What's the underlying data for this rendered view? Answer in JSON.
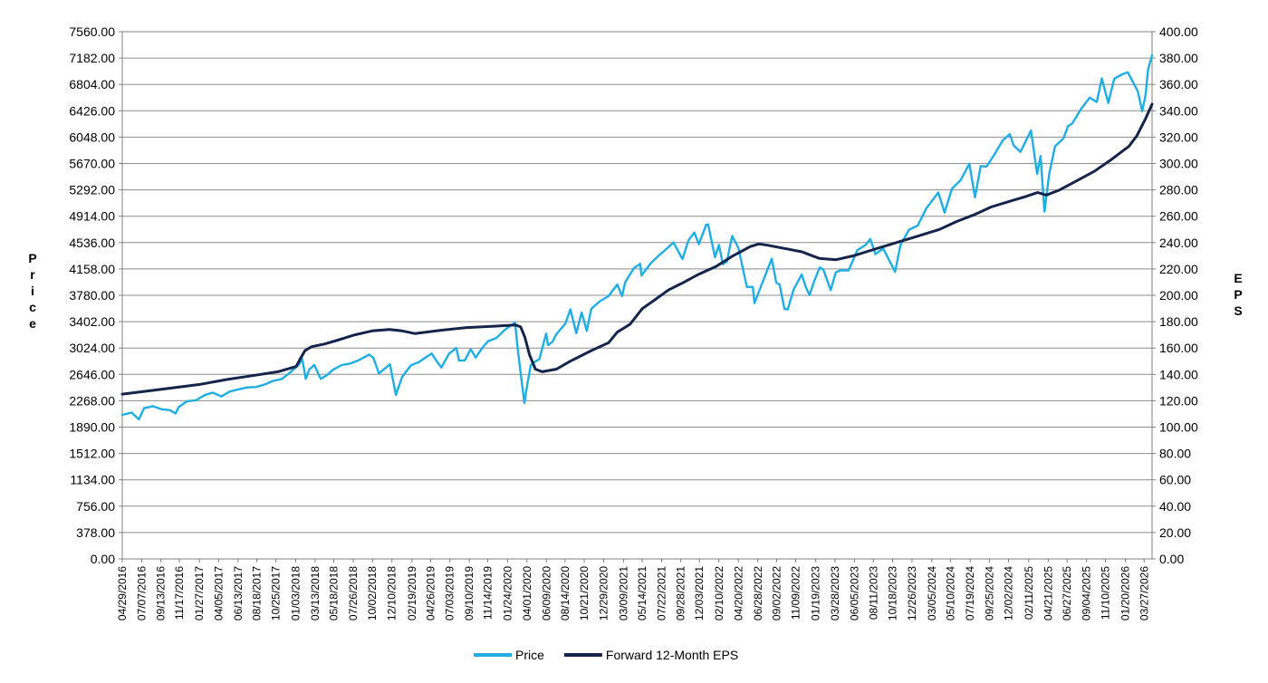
{
  "chart_data": {
    "type": "line",
    "title": "",
    "xlabel": "",
    "y_left_label": "Price",
    "y_right_label": "EPS",
    "y_left_ticks": [
      "0.00",
      "378.00",
      "756.00",
      "1134.00",
      "1512.00",
      "1890.00",
      "2268.00",
      "2646.00",
      "3024.00",
      "3402.00",
      "3780.00",
      "4158.00",
      "4536.00",
      "4914.00",
      "5292.00",
      "5670.00",
      "6048.00",
      "6426.00",
      "6804.00",
      "7182.00",
      "7560.00"
    ],
    "y_right_ticks": [
      "0.00",
      "20.00",
      "40.00",
      "60.00",
      "80.00",
      "100.00",
      "120.00",
      "140.00",
      "160.00",
      "180.00",
      "200.00",
      "220.00",
      "240.00",
      "260.00",
      "280.00",
      "300.00",
      "320.00",
      "340.00",
      "360.00",
      "380.00",
      "400.00"
    ],
    "y_left_lim": [
      0,
      7560
    ],
    "y_right_lim": [
      0,
      400
    ],
    "x_lim": [
      "04/29/2016",
      "04/24/2026"
    ],
    "x_ticks": [
      "04/29/2016",
      "07/07/2016",
      "09/13/2016",
      "11/17/2016",
      "01/27/2017",
      "04/05/2017",
      "06/13/2017",
      "08/18/2017",
      "10/25/2017",
      "01/03/2018",
      "03/13/2018",
      "05/18/2018",
      "07/26/2018",
      "10/02/2018",
      "12/10/2018",
      "02/19/2019",
      "04/26/2019",
      "07/03/2019",
      "09/10/2019",
      "11/14/2019",
      "01/24/2020",
      "04/01/2020",
      "06/09/2020",
      "08/14/2020",
      "10/21/2020",
      "12/29/2020",
      "03/09/2021",
      "05/14/2021",
      "07/22/2021",
      "09/28/2021",
      "12/03/2021",
      "02/10/2022",
      "04/20/2022",
      "06/28/2022",
      "09/02/2022",
      "11/09/2022",
      "01/19/2023",
      "03/28/2023",
      "06/05/2023",
      "08/11/2023",
      "10/18/2023",
      "12/26/2023",
      "03/05/2024",
      "05/10/2024",
      "07/19/2024",
      "09/25/2024",
      "12/02/2024",
      "02/11/2025",
      "04/21/2025",
      "06/27/2025",
      "09/04/2025",
      "11/10/2025",
      "01/20/2026",
      "03/27/2026"
    ],
    "grid": true,
    "legend_position": "bottom",
    "series": [
      {
        "name": "Price",
        "axis": "left",
        "color": "#1eaee4",
        "points": [
          [
            "04/29/2016",
            2065
          ],
          [
            "06/01/2016",
            2099
          ],
          [
            "06/27/2016",
            2001
          ],
          [
            "07/15/2016",
            2162
          ],
          [
            "08/15/2016",
            2190
          ],
          [
            "09/15/2016",
            2146
          ],
          [
            "10/15/2016",
            2133
          ],
          [
            "11/04/2016",
            2085
          ],
          [
            "11/15/2016",
            2180
          ],
          [
            "12/15/2016",
            2262
          ],
          [
            "01/15/2017",
            2274
          ],
          [
            "02/15/2017",
            2349
          ],
          [
            "03/15/2017",
            2385
          ],
          [
            "04/15/2017",
            2329
          ],
          [
            "05/15/2017",
            2400
          ],
          [
            "06/15/2017",
            2432
          ],
          [
            "07/15/2017",
            2459
          ],
          [
            "08/15/2017",
            2464
          ],
          [
            "09/15/2017",
            2500
          ],
          [
            "10/15/2017",
            2553
          ],
          [
            "11/15/2017",
            2580
          ],
          [
            "12/15/2017",
            2675
          ],
          [
            "01/15/2018",
            2786
          ],
          [
            "01/26/2018",
            2872
          ],
          [
            "02/08/2018",
            2581
          ],
          [
            "02/20/2018",
            2716
          ],
          [
            "03/10/2018",
            2780
          ],
          [
            "04/02/2018",
            2581
          ],
          [
            "04/25/2018",
            2640
          ],
          [
            "05/15/2018",
            2711
          ],
          [
            "06/15/2018",
            2780
          ],
          [
            "07/15/2018",
            2800
          ],
          [
            "08/15/2018",
            2850
          ],
          [
            "09/20/2018",
            2930
          ],
          [
            "10/05/2018",
            2885
          ],
          [
            "10/25/2018",
            2658
          ],
          [
            "11/15/2018",
            2730
          ],
          [
            "12/03/2018",
            2790
          ],
          [
            "12/24/2018",
            2351
          ],
          [
            "01/15/2019",
            2610
          ],
          [
            "02/15/2019",
            2775
          ],
          [
            "03/15/2019",
            2822
          ],
          [
            "04/15/2019",
            2907
          ],
          [
            "04/30/2019",
            2945
          ],
          [
            "05/15/2019",
            2850
          ],
          [
            "06/03/2019",
            2744
          ],
          [
            "06/30/2019",
            2941
          ],
          [
            "07/26/2019",
            3025
          ],
          [
            "08/05/2019",
            2844
          ],
          [
            "08/25/2019",
            2847
          ],
          [
            "09/15/2019",
            3007
          ],
          [
            "10/03/2019",
            2887
          ],
          [
            "10/25/2019",
            3022
          ],
          [
            "11/15/2019",
            3120
          ],
          [
            "12/15/2019",
            3168
          ],
          [
            "01/15/2020",
            3289
          ],
          [
            "02/19/2020",
            3386
          ],
          [
            "03/01/2020",
            2954
          ],
          [
            "03/23/2020",
            2237
          ],
          [
            "04/01/2020",
            2470
          ],
          [
            "04/15/2020",
            2783
          ],
          [
            "05/01/2020",
            2830
          ],
          [
            "05/15/2020",
            2863
          ],
          [
            "06/08/2020",
            3232
          ],
          [
            "06/15/2020",
            3066
          ],
          [
            "07/01/2020",
            3115
          ],
          [
            "07/15/2020",
            3226
          ],
          [
            "08/15/2020",
            3372
          ],
          [
            "09/02/2020",
            3580
          ],
          [
            "09/23/2020",
            3237
          ],
          [
            "10/12/2020",
            3534
          ],
          [
            "10/30/2020",
            3270
          ],
          [
            "11/15/2020",
            3585
          ],
          [
            "12/15/2020",
            3694
          ],
          [
            "01/15/2021",
            3768
          ],
          [
            "02/15/2021",
            3934
          ],
          [
            "03/04/2021",
            3768
          ],
          [
            "03/15/2021",
            3968
          ],
          [
            "04/15/2021",
            4170
          ],
          [
            "05/07/2021",
            4232
          ],
          [
            "05/12/2021",
            4063
          ],
          [
            "06/15/2021",
            4246
          ],
          [
            "07/15/2021",
            4360
          ],
          [
            "08/15/2021",
            4468
          ],
          [
            "09/02/2021",
            4537
          ],
          [
            "10/04/2021",
            4300
          ],
          [
            "10/25/2021",
            4566
          ],
          [
            "11/15/2021",
            4682
          ],
          [
            "12/01/2021",
            4513
          ],
          [
            "12/27/2021",
            4791
          ],
          [
            "01/03/2022",
            4796
          ],
          [
            "01/27/2022",
            4326
          ],
          [
            "02/10/2022",
            4504
          ],
          [
            "02/24/2022",
            4225
          ],
          [
            "03/10/2022",
            4260
          ],
          [
            "03/29/2022",
            4631
          ],
          [
            "04/20/2022",
            4460
          ],
          [
            "05/20/2022",
            3901
          ],
          [
            "06/10/2022",
            3900
          ],
          [
            "06/16/2022",
            3666
          ],
          [
            "07/01/2022",
            3825
          ],
          [
            "08/16/2022",
            4305
          ],
          [
            "09/01/2022",
            3966
          ],
          [
            "09/13/2022",
            3932
          ],
          [
            "09/30/2022",
            3585
          ],
          [
            "10/12/2022",
            3577
          ],
          [
            "11/01/2022",
            3856
          ],
          [
            "11/30/2022",
            4080
          ],
          [
            "12/15/2022",
            3895
          ],
          [
            "12/28/2022",
            3783
          ],
          [
            "01/15/2023",
            3999
          ],
          [
            "02/02/2023",
            4179
          ],
          [
            "02/15/2023",
            4147
          ],
          [
            "03/13/2023",
            3855
          ],
          [
            "03/31/2023",
            4109
          ],
          [
            "04/15/2023",
            4137
          ],
          [
            "05/15/2023",
            4136
          ],
          [
            "06/15/2023",
            4426
          ],
          [
            "07/15/2023",
            4505
          ],
          [
            "07/31/2023",
            4588
          ],
          [
            "08/18/2023",
            4370
          ],
          [
            "09/15/2023",
            4450
          ],
          [
            "10/27/2023",
            4117
          ],
          [
            "11/15/2023",
            4502
          ],
          [
            "12/15/2023",
            4719
          ],
          [
            "01/15/2024",
            4780
          ],
          [
            "02/15/2024",
            5029
          ],
          [
            "03/28/2024",
            5254
          ],
          [
            "04/19/2024",
            4967
          ],
          [
            "05/15/2024",
            5308
          ],
          [
            "06/15/2024",
            5431
          ],
          [
            "07/16/2024",
            5667
          ],
          [
            "08/05/2024",
            5186
          ],
          [
            "08/25/2024",
            5634
          ],
          [
            "09/15/2024",
            5626
          ],
          [
            "10/15/2024",
            5815
          ],
          [
            "11/11/2024",
            6001
          ],
          [
            "12/06/2024",
            6090
          ],
          [
            "12/20/2024",
            5930
          ],
          [
            "01/13/2025",
            5836
          ],
          [
            "02/19/2025",
            6144
          ],
          [
            "03/13/2025",
            5521
          ],
          [
            "03/25/2025",
            5776
          ],
          [
            "04/08/2025",
            4982
          ],
          [
            "04/25/2025",
            5525
          ],
          [
            "05/15/2025",
            5916
          ],
          [
            "06/15/2025",
            6034
          ],
          [
            "06/30/2025",
            6205
          ],
          [
            "07/15/2025",
            6243
          ],
          [
            "08/15/2025",
            6449
          ],
          [
            "09/15/2025",
            6615
          ],
          [
            "10/10/2025",
            6552
          ],
          [
            "10/28/2025",
            6890
          ],
          [
            "11/20/2025",
            6538
          ],
          [
            "12/11/2025",
            6886
          ],
          [
            "01/06/2026",
            6944
          ],
          [
            "01/28/2026",
            6978
          ],
          [
            "02/15/2026",
            6840
          ],
          [
            "03/05/2026",
            6700
          ],
          [
            "03/20/2026",
            6420
          ],
          [
            "04/01/2026",
            6650
          ],
          [
            "04/10/2026",
            7020
          ],
          [
            "04/24/2026",
            7220
          ]
        ]
      },
      {
        "name": "Forward 12-Month EPS",
        "axis": "right",
        "color": "#14244a",
        "points": [
          [
            "04/29/2016",
            125
          ],
          [
            "08/01/2016",
            127.5
          ],
          [
            "11/01/2016",
            130
          ],
          [
            "02/01/2017",
            132.5
          ],
          [
            "05/01/2017",
            136
          ],
          [
            "08/01/2017",
            139
          ],
          [
            "11/01/2017",
            142
          ],
          [
            "01/05/2018",
            146
          ],
          [
            "01/20/2018",
            152
          ],
          [
            "02/05/2018",
            158
          ],
          [
            "03/01/2018",
            161
          ],
          [
            "04/15/2018",
            163
          ],
          [
            "06/01/2018",
            166
          ],
          [
            "08/01/2018",
            170
          ],
          [
            "10/01/2018",
            173
          ],
          [
            "12/01/2018",
            174
          ],
          [
            "01/15/2019",
            173
          ],
          [
            "03/01/2019",
            171
          ],
          [
            "06/01/2019",
            173.5
          ],
          [
            "09/01/2019",
            175.5
          ],
          [
            "12/01/2019",
            176.5
          ],
          [
            "02/20/2020",
            177.5
          ],
          [
            "03/10/2020",
            176
          ],
          [
            "03/25/2020",
            168
          ],
          [
            "04/10/2020",
            155
          ],
          [
            "05/01/2020",
            144
          ],
          [
            "05/25/2020",
            142
          ],
          [
            "07/15/2020",
            144
          ],
          [
            "09/01/2020",
            150
          ],
          [
            "11/15/2020",
            158
          ],
          [
            "01/15/2021",
            164
          ],
          [
            "02/15/2021",
            172
          ],
          [
            "04/01/2021",
            178
          ],
          [
            "05/15/2021",
            190
          ],
          [
            "07/01/2021",
            197
          ],
          [
            "08/15/2021",
            204
          ],
          [
            "10/01/2021",
            209
          ],
          [
            "12/01/2021",
            216
          ],
          [
            "02/01/2022",
            222
          ],
          [
            "04/01/2022",
            230
          ],
          [
            "06/01/2022",
            237
          ],
          [
            "07/01/2022",
            239
          ],
          [
            "08/01/2022",
            238
          ],
          [
            "10/01/2022",
            235.5
          ],
          [
            "12/01/2022",
            233
          ],
          [
            "02/01/2023",
            228
          ],
          [
            "04/01/2023",
            227
          ],
          [
            "06/01/2023",
            230
          ],
          [
            "08/01/2023",
            234
          ],
          [
            "10/01/2023",
            238
          ],
          [
            "12/01/2023",
            242
          ],
          [
            "02/01/2024",
            246
          ],
          [
            "04/01/2024",
            250
          ],
          [
            "06/01/2024",
            256
          ],
          [
            "08/01/2024",
            261
          ],
          [
            "10/01/2024",
            267
          ],
          [
            "12/01/2024",
            271
          ],
          [
            "02/01/2025",
            275
          ],
          [
            "03/15/2025",
            278
          ],
          [
            "04/15/2025",
            276
          ],
          [
            "06/01/2025",
            280
          ],
          [
            "08/01/2025",
            287
          ],
          [
            "10/01/2025",
            294
          ],
          [
            "12/01/2025",
            303
          ],
          [
            "02/01/2026",
            313
          ],
          [
            "03/01/2026",
            321
          ],
          [
            "04/01/2026",
            334
          ],
          [
            "04/24/2026",
            345
          ]
        ]
      }
    ]
  }
}
